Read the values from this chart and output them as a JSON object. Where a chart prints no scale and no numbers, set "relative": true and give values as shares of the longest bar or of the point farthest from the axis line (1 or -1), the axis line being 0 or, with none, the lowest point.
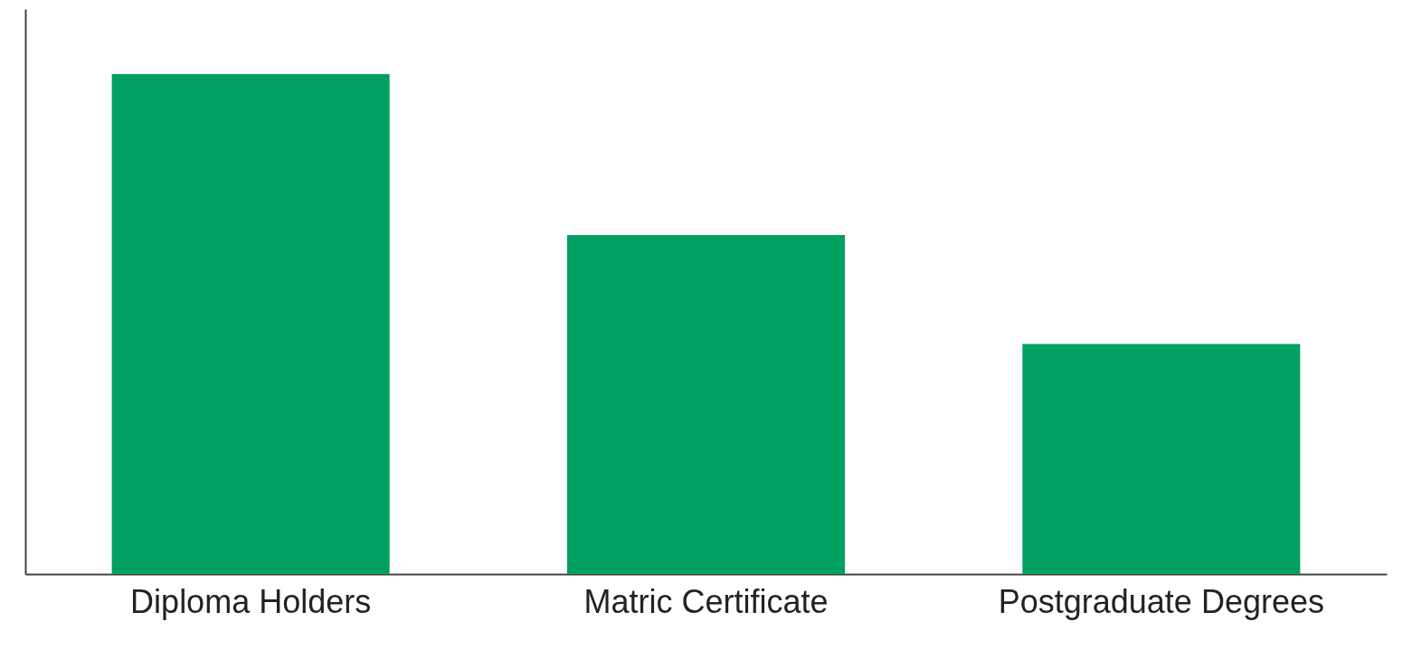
{
  "chart_data": {
    "type": "bar",
    "relative": true,
    "categories": [
      "Diploma Holders",
      "Matric Certificate",
      "Postgraduate Degrees"
    ],
    "values": [
      1,
      0.678,
      0.46
    ],
    "color": "#00a060"
  }
}
